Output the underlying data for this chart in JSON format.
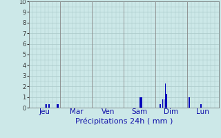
{
  "title": "",
  "xlabel": "Précipitations 24h ( mm )",
  "ylabel": "",
  "bg_color": "#cce8e8",
  "bar_color": "#0000bb",
  "ylim": [
    0,
    10
  ],
  "yticks": [
    0,
    1,
    2,
    3,
    4,
    5,
    6,
    7,
    8,
    9,
    10
  ],
  "grid_color": "#aac8c8",
  "day_labels": [
    "Jeu",
    "Mar",
    "Ven",
    "Sam",
    "Dim",
    "Lun"
  ],
  "day_positions": [
    0.5,
    1.5,
    2.5,
    3.5,
    4.5,
    5.5
  ],
  "vline_positions": [
    1.0,
    2.0,
    3.0,
    4.0,
    5.0
  ],
  "n_bars": 144,
  "bar_data": [
    [
      12,
      0.3
    ],
    [
      13,
      0.3
    ],
    [
      15,
      0.3
    ],
    [
      21,
      0.35
    ],
    [
      22,
      0.35
    ],
    [
      84,
      0.95
    ],
    [
      85,
      1.0
    ],
    [
      99,
      0.35
    ],
    [
      101,
      0.8
    ],
    [
      102,
      0.75
    ],
    [
      103,
      2.3
    ],
    [
      104,
      1.3
    ],
    [
      121,
      0.95
    ],
    [
      130,
      0.3
    ]
  ],
  "xlabel_fontsize": 8,
  "tick_fontsize": 6,
  "label_fontsize": 7.5
}
